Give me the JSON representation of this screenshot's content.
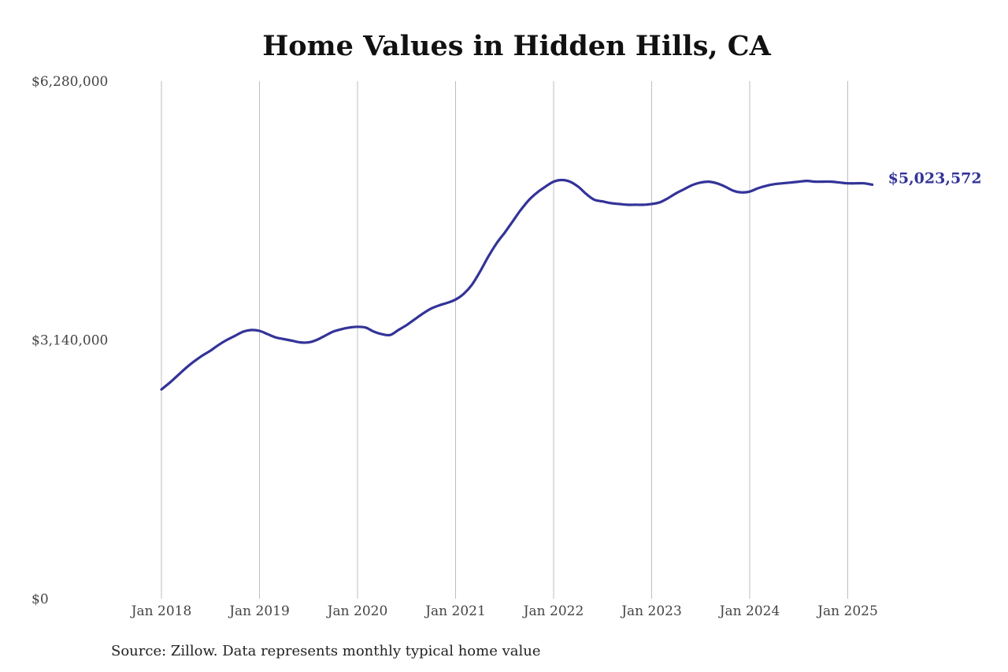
{
  "chart_data": {
    "type": "line",
    "title": "Home Values in Hidden Hills, CA",
    "xlabel": "",
    "ylabel": "",
    "ylim": [
      0,
      6280000
    ],
    "y_ticks": [
      0,
      3140000,
      6280000
    ],
    "y_tick_labels": [
      "$0",
      "$3,140,000",
      "$6,280,000"
    ],
    "x_ticks": [
      "2018-01",
      "2019-01",
      "2020-01",
      "2021-01",
      "2022-01",
      "2023-01",
      "2024-01",
      "2025-01"
    ],
    "x_tick_labels": [
      "Jan 2018",
      "Jan 2019",
      "Jan 2020",
      "Jan 2021",
      "Jan 2022",
      "Jan 2023",
      "Jan 2024",
      "Jan 2025"
    ],
    "grid": "vertical",
    "series": [
      {
        "color": "#333399",
        "x": [
          "2018-01",
          "2018-02",
          "2018-03",
          "2018-04",
          "2018-05",
          "2018-06",
          "2018-07",
          "2018-08",
          "2018-09",
          "2018-10",
          "2018-11",
          "2018-12",
          "2019-01",
          "2019-02",
          "2019-03",
          "2019-04",
          "2019-05",
          "2019-06",
          "2019-07",
          "2019-08",
          "2019-09",
          "2019-10",
          "2019-11",
          "2019-12",
          "2020-01",
          "2020-02",
          "2020-03",
          "2020-04",
          "2020-05",
          "2020-06",
          "2020-07",
          "2020-08",
          "2020-09",
          "2020-10",
          "2020-11",
          "2020-12",
          "2021-01",
          "2021-02",
          "2021-03",
          "2021-04",
          "2021-05",
          "2021-06",
          "2021-07",
          "2021-08",
          "2021-09",
          "2021-10",
          "2021-11",
          "2021-12",
          "2022-01",
          "2022-02",
          "2022-03",
          "2022-04",
          "2022-05",
          "2022-06",
          "2022-07",
          "2022-08",
          "2022-09",
          "2022-10",
          "2022-11",
          "2022-12",
          "2023-01",
          "2023-02",
          "2023-03",
          "2023-04",
          "2023-05",
          "2023-06",
          "2023-07",
          "2023-08",
          "2023-09",
          "2023-10",
          "2023-11",
          "2023-12",
          "2024-01",
          "2024-02",
          "2024-03",
          "2024-04",
          "2024-05",
          "2024-06",
          "2024-07",
          "2024-08",
          "2024-09",
          "2024-10",
          "2024-11",
          "2024-12",
          "2025-01",
          "2025-02",
          "2025-03",
          "2025-04"
        ],
        "values": [
          2540000,
          2620000,
          2710000,
          2800000,
          2880000,
          2950000,
          3010000,
          3080000,
          3140000,
          3190000,
          3240000,
          3260000,
          3250000,
          3210000,
          3170000,
          3150000,
          3130000,
          3110000,
          3110000,
          3140000,
          3190000,
          3240000,
          3270000,
          3290000,
          3300000,
          3290000,
          3240000,
          3210000,
          3200000,
          3260000,
          3320000,
          3390000,
          3460000,
          3520000,
          3560000,
          3590000,
          3630000,
          3700000,
          3810000,
          3970000,
          4150000,
          4310000,
          4440000,
          4580000,
          4720000,
          4840000,
          4930000,
          5000000,
          5060000,
          5080000,
          5060000,
          5000000,
          4910000,
          4840000,
          4820000,
          4800000,
          4790000,
          4780000,
          4780000,
          4780000,
          4790000,
          4810000,
          4860000,
          4920000,
          4970000,
          5020000,
          5050000,
          5060000,
          5040000,
          5000000,
          4950000,
          4930000,
          4940000,
          4980000,
          5010000,
          5030000,
          5040000,
          5050000,
          5060000,
          5070000,
          5060000,
          5060000,
          5060000,
          5050000,
          5040000,
          5040000,
          5040000,
          5023572
        ]
      }
    ],
    "end_label": "$5,023,572",
    "source": "Source: Zillow. Data represents monthly typical home value"
  }
}
